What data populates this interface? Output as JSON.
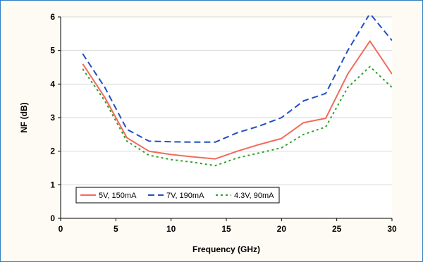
{
  "chart_data": {
    "type": "line",
    "title": "",
    "xlabel": "Frequency (GHz)",
    "ylabel": "NF (dB)",
    "xlim": [
      0,
      30
    ],
    "ylim": [
      0,
      6
    ],
    "x_ticks": [
      0,
      5,
      10,
      15,
      20,
      25,
      30
    ],
    "y_ticks": [
      0,
      1,
      2,
      3,
      4,
      5,
      6
    ],
    "x_tick_labels": [
      "0",
      "5",
      "10",
      "15",
      "20",
      "25",
      "30"
    ],
    "y_tick_labels": [
      "0",
      "1",
      "2",
      "3",
      "4",
      "5",
      "6"
    ],
    "grid": "horizontal",
    "legend_position": "bottom-left",
    "series": [
      {
        "name": "5V, 150mA",
        "color": "#f26b5b",
        "style": "solid",
        "x": [
          2,
          4,
          6,
          8,
          10,
          12,
          14,
          16,
          18,
          20,
          22,
          24,
          26,
          28,
          30
        ],
        "y": [
          4.6,
          3.6,
          2.4,
          2.0,
          1.9,
          1.83,
          1.77,
          2.0,
          2.2,
          2.38,
          2.85,
          2.98,
          4.3,
          5.28,
          4.3
        ]
      },
      {
        "name": "7V, 190mA",
        "color": "#1f4fc4",
        "style": "dashed",
        "x": [
          2,
          4,
          6,
          8,
          10,
          12,
          14,
          16,
          18,
          20,
          22,
          24,
          26,
          28,
          30
        ],
        "y": [
          4.9,
          3.9,
          2.65,
          2.3,
          2.28,
          2.27,
          2.27,
          2.55,
          2.75,
          3.0,
          3.5,
          3.72,
          5.0,
          6.1,
          5.3
        ]
      },
      {
        "name": "4.3V, 90mA",
        "color": "#2ca02c",
        "style": "dotted",
        "x": [
          2,
          4,
          6,
          8,
          10,
          12,
          14,
          16,
          18,
          20,
          22,
          24,
          26,
          28,
          30
        ],
        "y": [
          4.45,
          3.5,
          2.3,
          1.88,
          1.75,
          1.67,
          1.57,
          1.8,
          1.95,
          2.1,
          2.5,
          2.72,
          3.9,
          4.52,
          3.9
        ]
      }
    ]
  }
}
